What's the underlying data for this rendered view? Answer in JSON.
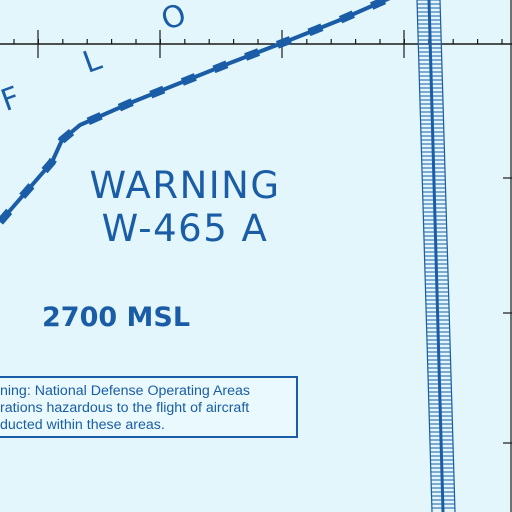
{
  "map_labels": {
    "region_letters": [
      "F",
      "L",
      "O"
    ],
    "warning_title": "WARNING",
    "warning_id": "W-465 A",
    "altitude": "2700 MSL"
  },
  "notice": {
    "line1": "ning: National Defense Operating Areas",
    "line2": "rations hazardous to the flight of aircraft",
    "line3": "ducted within these areas."
  },
  "colors": {
    "background": "#e3f6fb",
    "chart_blue": "#1a5da6",
    "grid_black": "#1a1a1a"
  }
}
